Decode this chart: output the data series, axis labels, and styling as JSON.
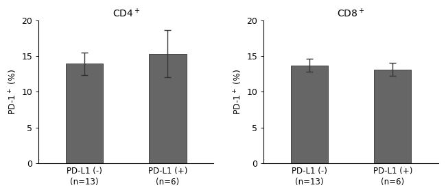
{
  "panels": [
    {
      "title": "CD4$^+$",
      "categories": [
        "PD-L1 (-)\n(n=13)",
        "PD-L1 (+)\n(n=6)"
      ],
      "values": [
        13.9,
        15.3
      ],
      "errors": [
        1.6,
        3.3
      ],
      "ylim": [
        0,
        20
      ],
      "yticks": [
        0,
        5,
        10,
        15,
        20
      ]
    },
    {
      "title": "CD8$^+$",
      "categories": [
        "PD-L1 (-)\n(n=13)",
        "PD-L1 (+)\n(n=6)"
      ],
      "values": [
        13.7,
        13.1
      ],
      "errors": [
        0.9,
        0.9
      ],
      "ylim": [
        0,
        20
      ],
      "yticks": [
        0,
        5,
        10,
        15,
        20
      ]
    }
  ],
  "ylabel": "PD-1$^+$ (%)",
  "bar_color": "#666666",
  "bar_width": 0.45,
  "bar_edgecolor": "#444444",
  "error_color": "#333333",
  "background_color": "#ffffff",
  "tick_fontsize": 9,
  "label_fontsize": 9,
  "title_fontsize": 10,
  "xtick_fontsize": 8.5
}
